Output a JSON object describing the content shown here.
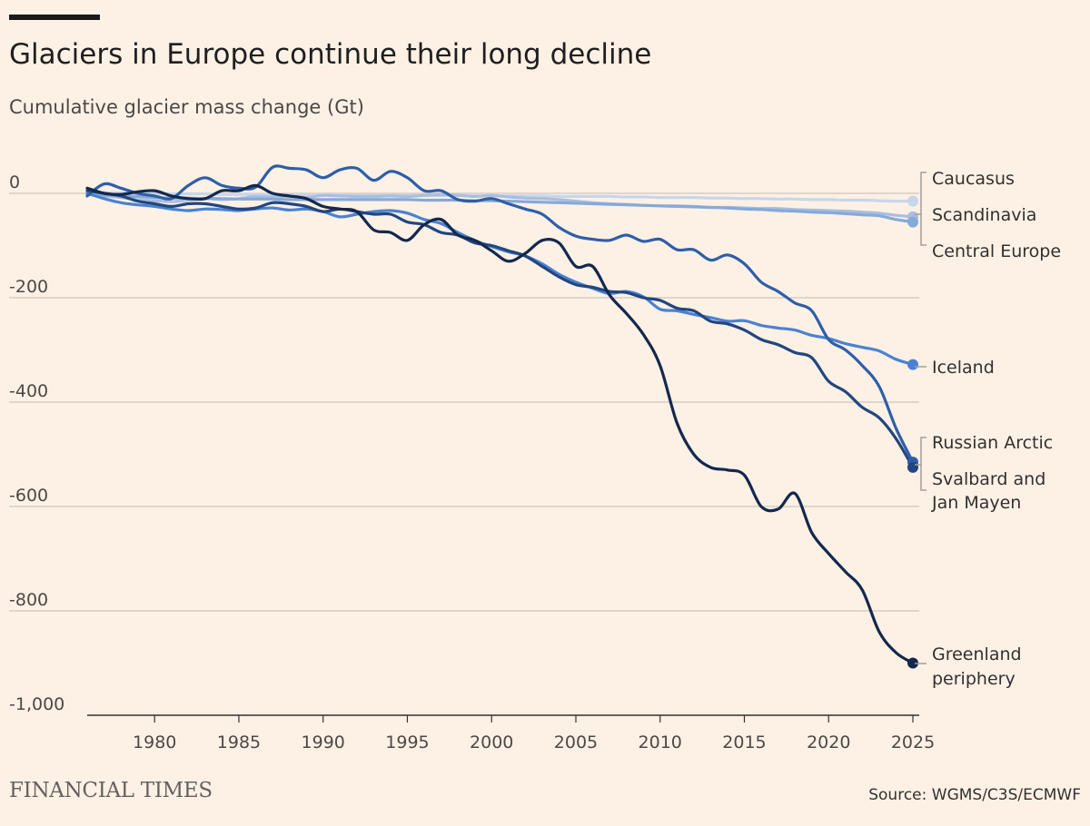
{
  "header": {
    "title": "Glaciers in Europe continue their long decline",
    "subtitle": "Cumulative glacier mass change (Gt)"
  },
  "footer": {
    "brand": "FINANCIAL TIMES",
    "source": "Source: WGMS/C3S/ECMWF"
  },
  "chart_data": {
    "type": "line",
    "title": "Glaciers in Europe continue their long decline",
    "ylabel": "Cumulative glacier mass change (Gt)",
    "xlim": [
      1976,
      2025
    ],
    "ylim": [
      -1000,
      50
    ],
    "x_ticks": [
      1980,
      1985,
      1990,
      1995,
      2000,
      2005,
      2010,
      2015,
      2020,
      2025
    ],
    "y_ticks": [
      0,
      -200,
      -400,
      -600,
      -800,
      -1000
    ],
    "y_tick_labels": [
      "0",
      "-200",
      "-400",
      "-600",
      "-800",
      "-1,000"
    ],
    "grid": true,
    "x": [
      1976,
      1977,
      1978,
      1979,
      1980,
      1981,
      1982,
      1983,
      1984,
      1985,
      1986,
      1987,
      1988,
      1989,
      1990,
      1991,
      1992,
      1993,
      1994,
      1995,
      1996,
      1997,
      1998,
      1999,
      2000,
      2001,
      2002,
      2003,
      2004,
      2005,
      2006,
      2007,
      2008,
      2009,
      2010,
      2011,
      2012,
      2013,
      2014,
      2015,
      2016,
      2017,
      2018,
      2019,
      2020,
      2021,
      2022,
      2023,
      2024,
      2025
    ],
    "series": [
      {
        "name": "Caucasus",
        "color": "#c8d6ea",
        "values": [
          0,
          1,
          1,
          0,
          0,
          -1,
          -1,
          -1,
          -2,
          -2,
          -2,
          -2,
          -3,
          -3,
          -3,
          -3,
          -4,
          -4,
          -4,
          -4,
          -4,
          -4,
          -4,
          -5,
          -5,
          -5,
          -5,
          -5,
          -6,
          -6,
          -6,
          -6,
          -7,
          -7,
          -8,
          -8,
          -8,
          -9,
          -9,
          -10,
          -10,
          -11,
          -11,
          -12,
          -12,
          -13,
          -13,
          -14,
          -15,
          -15
        ]
      },
      {
        "name": "Scandinavia",
        "color": "#a7bfe0",
        "values": [
          -2,
          -5,
          -8,
          -12,
          -14,
          -16,
          -13,
          -10,
          -12,
          -10,
          -6,
          -7,
          -6,
          -8,
          -4,
          -5,
          -6,
          -6,
          -5,
          -6,
          -4,
          -3,
          -4,
          -6,
          -4,
          -7,
          -9,
          -10,
          -12,
          -15,
          -18,
          -20,
          -21,
          -23,
          -24,
          -24,
          -25,
          -27,
          -27,
          -28,
          -29,
          -29,
          -31,
          -32,
          -33,
          -34,
          -36,
          -38,
          -42,
          -45
        ]
      },
      {
        "name": "Central Europe",
        "color": "#86a9d8",
        "values": [
          -2,
          -3,
          -5,
          -6,
          -8,
          -9,
          -9,
          -10,
          -10,
          -11,
          -11,
          -11,
          -12,
          -12,
          -12,
          -12,
          -12,
          -12,
          -12,
          -12,
          -13,
          -13,
          -13,
          -14,
          -14,
          -15,
          -16,
          -17,
          -18,
          -19,
          -20,
          -21,
          -22,
          -23,
          -24,
          -25,
          -26,
          -27,
          -28,
          -30,
          -31,
          -33,
          -34,
          -36,
          -37,
          -39,
          -41,
          -43,
          -50,
          -55
        ]
      },
      {
        "name": "Iceland",
        "color": "#4a82d1",
        "values": [
          0,
          -10,
          -18,
          -22,
          -25,
          -30,
          -33,
          -30,
          -31,
          -33,
          -30,
          -28,
          -32,
          -30,
          -35,
          -45,
          -40,
          -35,
          -33,
          -38,
          -50,
          -58,
          -75,
          -90,
          -102,
          -112,
          -120,
          -135,
          -155,
          -170,
          -182,
          -192,
          -188,
          -198,
          -222,
          -225,
          -232,
          -238,
          -245,
          -244,
          -253,
          -258,
          -262,
          -272,
          -278,
          -288,
          -295,
          -302,
          -318,
          -328
        ]
      },
      {
        "name": "Russian Arctic",
        "color": "#2f5ea8",
        "values": [
          -5,
          18,
          10,
          0,
          -5,
          -10,
          15,
          30,
          15,
          10,
          12,
          50,
          48,
          45,
          30,
          45,
          48,
          25,
          42,
          30,
          5,
          5,
          -12,
          -15,
          -10,
          -20,
          -30,
          -40,
          -65,
          -82,
          -88,
          -90,
          -80,
          -92,
          -88,
          -108,
          -108,
          -128,
          -118,
          -135,
          -170,
          -188,
          -210,
          -225,
          -280,
          -300,
          -330,
          -370,
          -450,
          -515
        ]
      },
      {
        "name": "Svalbard and Jan Mayen",
        "color": "#22467e",
        "values": [
          5,
          0,
          -5,
          -15,
          -20,
          -25,
          -20,
          -20,
          -25,
          -30,
          -28,
          -18,
          -20,
          -25,
          -35,
          -30,
          -35,
          -40,
          -40,
          -55,
          -60,
          -75,
          -80,
          -95,
          -100,
          -110,
          -120,
          -140,
          -160,
          -175,
          -180,
          -188,
          -190,
          -200,
          -205,
          -220,
          -225,
          -245,
          -250,
          -262,
          -280,
          -290,
          -305,
          -315,
          -360,
          -380,
          -410,
          -430,
          -470,
          -525
        ]
      },
      {
        "name": "Greenland periphery",
        "color": "#14284d",
        "values": [
          10,
          0,
          -2,
          3,
          5,
          -5,
          -10,
          -10,
          5,
          5,
          15,
          0,
          -5,
          -10,
          -25,
          -30,
          -35,
          -70,
          -75,
          -90,
          -60,
          -50,
          -80,
          -90,
          -110,
          -130,
          -115,
          -90,
          -95,
          -140,
          -140,
          -195,
          -230,
          -270,
          -330,
          -440,
          -500,
          -525,
          -530,
          -540,
          -600,
          -605,
          -575,
          -650,
          -690,
          -725,
          -760,
          -840,
          -880,
          -900
        ]
      }
    ],
    "labels": {
      "caucasus": "Caucasus",
      "scandinavia": "Scandinavia",
      "central_europe": "Central Europe",
      "iceland": "Iceland",
      "russian_arctic": "Russian Arctic",
      "svalbard_line1": "Svalbard and",
      "svalbard_line2": "Jan Mayen",
      "greenland_line1": "Greenland",
      "greenland_line2": "periphery"
    }
  }
}
